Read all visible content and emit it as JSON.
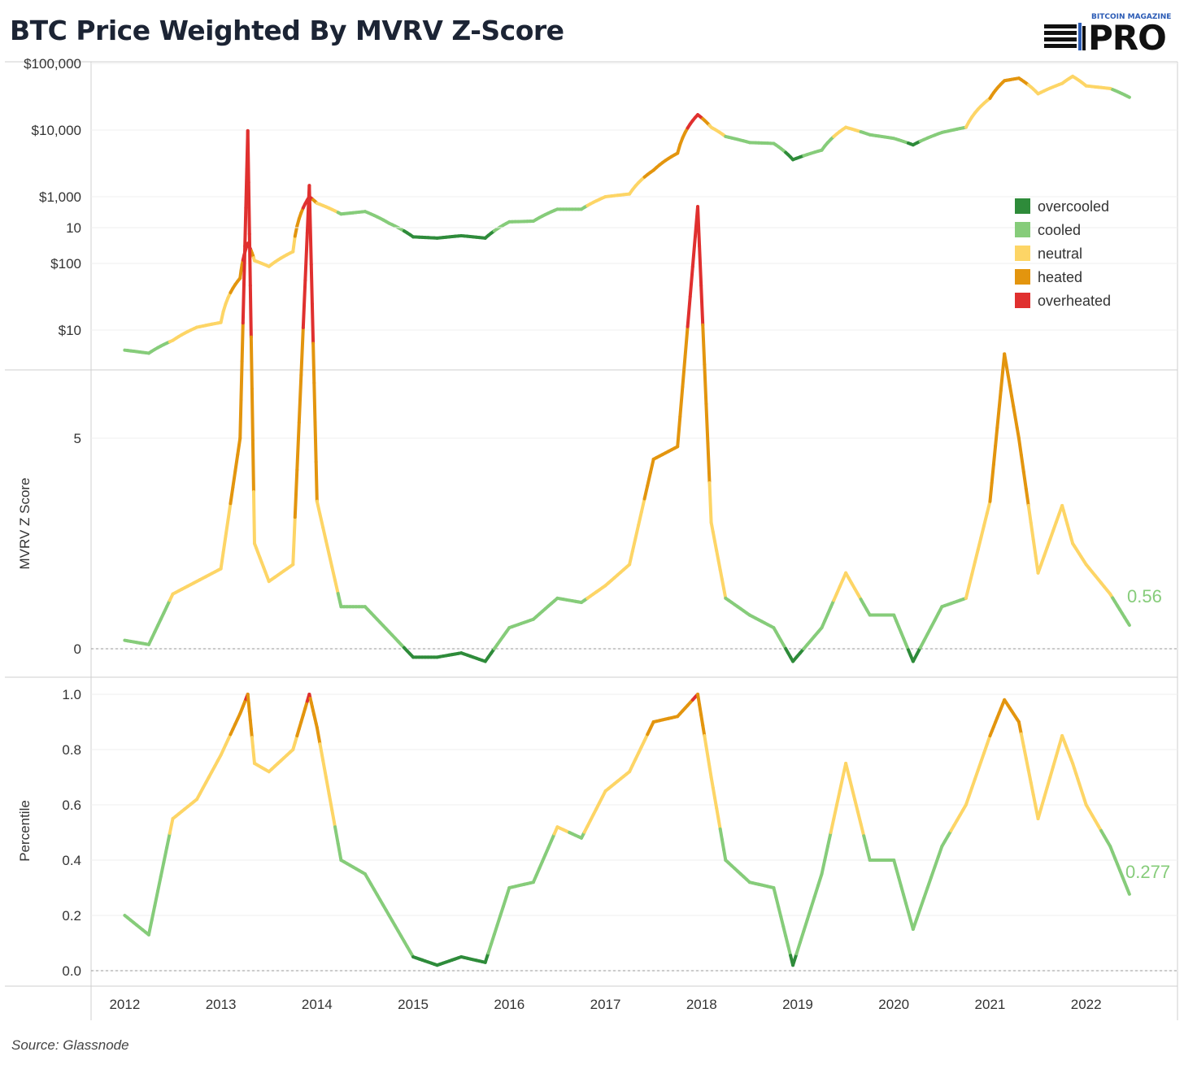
{
  "title": "BTC Price Weighted By MVRV Z-Score",
  "logo": {
    "brand": "BITCOIN MAGAZINE",
    "product": "PRO"
  },
  "source": "Source: Glassnode",
  "colors": {
    "overcooled": "#2e8b3a",
    "cooled": "#86cc7a",
    "neutral": "#fdd566",
    "heated": "#e3950e",
    "overheated": "#e0302f"
  },
  "legend": [
    {
      "key": "overcooled",
      "label": "overcooled"
    },
    {
      "key": "cooled",
      "label": "cooled"
    },
    {
      "key": "neutral",
      "label": "neutral"
    },
    {
      "key": "heated",
      "label": "heated"
    },
    {
      "key": "overheated",
      "label": "overheated"
    }
  ],
  "x_ticks": [
    "2012",
    "2013",
    "2014",
    "2015",
    "2016",
    "2017",
    "2018",
    "2019",
    "2020",
    "2021",
    "2022"
  ],
  "chart_data": [
    {
      "type": "line",
      "panel": "price",
      "scale": "log",
      "ylabel": "",
      "y_ticks": [
        "$10",
        "$100",
        "$1,000",
        "$10,000",
        "$100,000"
      ],
      "grid": true,
      "legend_position": "right",
      "x": [
        2012.0,
        2012.25,
        2012.5,
        2012.75,
        2013.0,
        2013.2,
        2013.28,
        2013.35,
        2013.5,
        2013.75,
        2013.92,
        2014.0,
        2014.25,
        2014.5,
        2014.75,
        2015.0,
        2015.25,
        2015.5,
        2015.75,
        2016.0,
        2016.25,
        2016.5,
        2016.75,
        2017.0,
        2017.25,
        2017.5,
        2017.75,
        2017.96,
        2018.1,
        2018.25,
        2018.5,
        2018.75,
        2018.95,
        2019.25,
        2019.5,
        2019.75,
        2020.0,
        2020.2,
        2020.5,
        2020.75,
        2021.0,
        2021.15,
        2021.3,
        2021.5,
        2021.75,
        2021.86,
        2022.0,
        2022.25,
        2022.45
      ],
      "y": [
        5,
        4.5,
        7,
        11,
        13,
        60,
        200,
        110,
        90,
        150,
        1000,
        800,
        550,
        600,
        400,
        250,
        240,
        260,
        240,
        420,
        430,
        650,
        650,
        1000,
        1100,
        2500,
        4500,
        17000,
        11000,
        8000,
        6500,
        6300,
        3600,
        5000,
        11000,
        8500,
        7500,
        6000,
        9200,
        11000,
        30000,
        55000,
        60000,
        35000,
        50000,
        64000,
        46000,
        42000,
        31000
      ],
      "z": [
        0.2,
        0.1,
        1.3,
        1.6,
        1.9,
        5.0,
        12.3,
        2.5,
        1.6,
        2.0,
        11.0,
        3.5,
        1.0,
        1.0,
        0.4,
        -0.2,
        -0.2,
        -0.1,
        -0.3,
        0.5,
        0.7,
        1.2,
        1.1,
        1.5,
        2.0,
        4.5,
        4.8,
        10.5,
        3.0,
        1.2,
        0.8,
        0.5,
        -0.3,
        0.5,
        1.8,
        0.8,
        0.8,
        -0.3,
        1.0,
        1.2,
        3.5,
        7.0,
        5.0,
        1.8,
        3.4,
        2.5,
        2.0,
        1.3,
        0.56
      ]
    },
    {
      "type": "line",
      "panel": "zscore",
      "ylabel": "MVRV Z Score",
      "y_ticks": [
        "0",
        "5",
        "10"
      ],
      "ylim": [
        -1,
        12.5
      ],
      "grid": true,
      "x": [
        2012.0,
        2012.25,
        2012.5,
        2012.75,
        2013.0,
        2013.2,
        2013.28,
        2013.35,
        2013.5,
        2013.75,
        2013.92,
        2014.0,
        2014.25,
        2014.5,
        2014.75,
        2015.0,
        2015.25,
        2015.5,
        2015.75,
        2016.0,
        2016.25,
        2016.5,
        2016.75,
        2017.0,
        2017.25,
        2017.5,
        2017.75,
        2017.96,
        2018.1,
        2018.25,
        2018.5,
        2018.75,
        2018.95,
        2019.25,
        2019.5,
        2019.75,
        2020.0,
        2020.2,
        2020.5,
        2020.75,
        2021.0,
        2021.15,
        2021.3,
        2021.5,
        2021.75,
        2021.86,
        2022.0,
        2022.25,
        2022.45
      ],
      "y": [
        0.2,
        0.1,
        1.3,
        1.6,
        1.9,
        5.0,
        12.3,
        2.5,
        1.6,
        2.0,
        11.0,
        3.5,
        1.0,
        1.0,
        0.4,
        -0.2,
        -0.2,
        -0.1,
        -0.3,
        0.5,
        0.7,
        1.2,
        1.1,
        1.5,
        2.0,
        4.5,
        4.8,
        10.5,
        3.0,
        1.2,
        0.8,
        0.5,
        -0.3,
        0.5,
        1.8,
        0.8,
        0.8,
        -0.3,
        1.0,
        1.2,
        3.5,
        7.0,
        5.0,
        1.8,
        3.4,
        2.5,
        2.0,
        1.3,
        0.56
      ],
      "baseline": 0,
      "end_label": "0.56"
    },
    {
      "type": "line",
      "panel": "percentile",
      "ylabel": "Percentile",
      "y_ticks": [
        "0.0",
        "0.2",
        "0.4",
        "0.6",
        "0.8",
        "1.0"
      ],
      "ylim": [
        0,
        1
      ],
      "grid": true,
      "x": [
        2012.0,
        2012.25,
        2012.5,
        2012.75,
        2013.0,
        2013.2,
        2013.28,
        2013.35,
        2013.5,
        2013.75,
        2013.92,
        2014.0,
        2014.25,
        2014.5,
        2014.75,
        2015.0,
        2015.25,
        2015.5,
        2015.75,
        2016.0,
        2016.25,
        2016.5,
        2016.75,
        2017.0,
        2017.25,
        2017.5,
        2017.75,
        2017.96,
        2018.1,
        2018.25,
        2018.5,
        2018.75,
        2018.95,
        2019.25,
        2019.5,
        2019.75,
        2020.0,
        2020.2,
        2020.5,
        2020.75,
        2021.0,
        2021.15,
        2021.3,
        2021.5,
        2021.75,
        2021.86,
        2022.0,
        2022.25,
        2022.45
      ],
      "y": [
        0.2,
        0.13,
        0.55,
        0.62,
        0.78,
        0.93,
        1.0,
        0.75,
        0.72,
        0.8,
        1.0,
        0.88,
        0.4,
        0.35,
        0.2,
        0.05,
        0.02,
        0.05,
        0.03,
        0.3,
        0.32,
        0.52,
        0.48,
        0.65,
        0.72,
        0.9,
        0.92,
        1.0,
        0.7,
        0.4,
        0.32,
        0.3,
        0.02,
        0.35,
        0.75,
        0.4,
        0.4,
        0.15,
        0.45,
        0.6,
        0.85,
        0.98,
        0.9,
        0.55,
        0.85,
        0.75,
        0.6,
        0.45,
        0.277
      ],
      "baseline": 0,
      "end_label": "0.277"
    }
  ]
}
